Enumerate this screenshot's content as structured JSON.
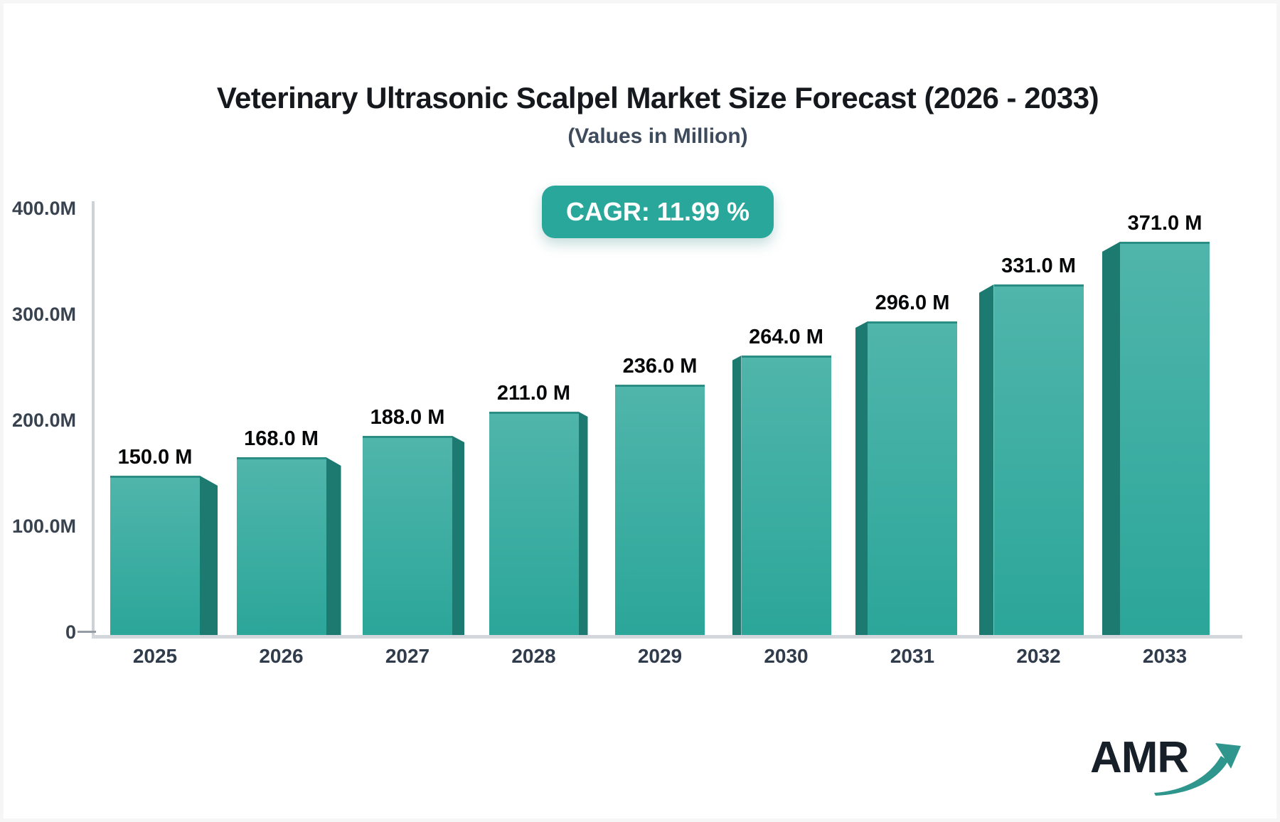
{
  "header": {
    "title": "Veterinary Ultrasonic Scalpel Market Size Forecast (2026 - 2033)",
    "subtitle": "(Values in Million)",
    "cagr_badge": "CAGR: 11.99 %",
    "cagr_percent": 11.99
  },
  "chart_data": {
    "type": "bar",
    "title": "Veterinary Ultrasonic Scalpel Market Size Forecast (2026 - 2033)",
    "subtitle": "(Values in Million)",
    "categories": [
      "2025",
      "2026",
      "2027",
      "2028",
      "2029",
      "2030",
      "2031",
      "2032",
      "2033"
    ],
    "values": [
      150,
      168,
      188,
      211,
      236,
      264,
      296,
      331,
      371
    ],
    "value_labels": [
      "150.0 M",
      "168.0 M",
      "188.0 M",
      "211.0 M",
      "236.0 M",
      "264.0 M",
      "296.0 M",
      "331.0 M",
      "371.0 M"
    ],
    "y_tick_values": [
      0,
      100,
      200,
      300,
      400
    ],
    "y_tick_labels": [
      "0",
      "100.0M",
      "200.0M",
      "300.0M",
      "400.0M"
    ],
    "ylim": [
      0,
      400
    ],
    "grid": false,
    "legend": false,
    "bar_style": "pseudo-3d",
    "colors": {
      "bar_top": "#50b5ab",
      "bar_bottom": "#2ba699",
      "bar_side": "#1d7a71",
      "bar_top_edge": "#2b8e84"
    }
  },
  "colors": {
    "badge_bg": "#2aa79b",
    "badge_text": "#ffffff",
    "axis_label": "#39434f",
    "baseline": "#d3d6db",
    "title": "#15181c",
    "subtitle": "#3e4b5c",
    "logo_arrow": "#2f968e"
  },
  "logo": {
    "text": "AMR"
  }
}
